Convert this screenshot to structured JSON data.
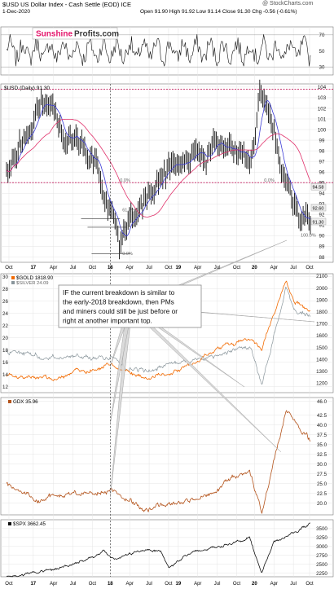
{
  "header": {
    "title": "$USD US Dollar Index - Cash Settle (EOD) ICE",
    "watermark": "@ StockCharts.com",
    "date": "1-Dec-2020",
    "quote": "Open 91.90  High 91.92  Low 91.14  Close 91.30  Chg -0.56 (-0.61%)"
  },
  "logo": {
    "part1": "Sunshine",
    "part2": "Profits.com",
    "color1": "#e4156b",
    "color2": "#3a3a3a"
  },
  "annotation": {
    "lines": [
      "IF the current breakdown is similar to",
      "the early-2018 breakdown, then PMs",
      "and miners could still be just before or",
      "right at another important top."
    ]
  },
  "colors": {
    "usd": "#111111",
    "ma_short": "#3b3bd6",
    "ma_long": "#e0306a",
    "gold": "#f26a00",
    "silver": "#8a969c",
    "gdx": "#b4541c",
    "spx": "#111111",
    "fib": "#c0185a"
  },
  "chart_data": [
    {
      "type": "line",
      "panel": "RSI",
      "y_ticks": [
        "70",
        "50",
        "30"
      ],
      "ylim": [
        20,
        80
      ],
      "series": []
    },
    {
      "type": "line",
      "panel": "USD",
      "legend": "$USD (Daily) 91.30",
      "x_ticks": [
        "Oct",
        "17",
        "Apr",
        "Jul",
        "Oct",
        "18",
        "Apr",
        "Jul",
        "Oct",
        "19",
        "Apr",
        "Jul",
        "Oct",
        "20",
        "Apr",
        "Jul",
        "Oct"
      ],
      "y_ticks": [
        "104",
        "103",
        "102",
        "101",
        "100",
        "99",
        "98",
        "97",
        "96",
        "95",
        "94",
        "93",
        "92",
        "91",
        "90",
        "89",
        "88"
      ],
      "ylim": [
        87.5,
        104.3
      ],
      "fib_labels": [
        "0.0%",
        "0.0%",
        "61.8%",
        "100.0%",
        "0.0%"
      ],
      "price_labels": [
        "94.58",
        "92.60",
        "91.30"
      ],
      "horizontal_levels": [
        103.8,
        95.0
      ],
      "anchors_x": [
        0,
        40,
        50,
        70,
        110,
        118,
        133,
        140,
        150,
        175,
        200,
        260,
        300,
        312,
        330,
        340,
        355,
        375
      ],
      "anchors_y": [
        96.5,
        101.5,
        102.5,
        100.5,
        97.0,
        94.0,
        92.0,
        89.0,
        91.0,
        94.5,
        96.5,
        98.0,
        97.0,
        103.5,
        99.5,
        96.5,
        93.0,
        91.3
      ]
    },
    {
      "type": "line",
      "panel": "GOLD_SILVER",
      "series_names": [
        "$GOLD 1818.90",
        "$SILVER 24.09"
      ],
      "left_ticks": [
        "30",
        "28",
        "26",
        "24",
        "22",
        "20",
        "18",
        "16",
        "14",
        "12"
      ],
      "right_ticks": [
        "2100",
        "2000",
        "1900",
        "1800",
        "1700",
        "1600",
        "1500",
        "1400",
        "1300",
        "1200"
      ],
      "ylim_gold": [
        1120,
        2120
      ],
      "anchors_x": [
        0,
        60,
        110,
        130,
        150,
        170,
        200,
        260,
        300,
        315,
        345,
        355,
        375
      ],
      "anchors_gold": [
        1260,
        1240,
        1330,
        1350,
        1280,
        1230,
        1290,
        1480,
        1580,
        1500,
        2050,
        1900,
        1800
      ],
      "anchors_silver": [
        17.8,
        16.8,
        17.0,
        16.6,
        15.2,
        14.6,
        15.8,
        17.3,
        18.5,
        12.0,
        28.5,
        24.5,
        23.5
      ]
    },
    {
      "type": "line",
      "panel": "GDX",
      "legend": "GDX 35.96",
      "y_ticks": [
        "46.0",
        "42.5",
        "40.0",
        "37.5",
        "35.0",
        "32.5",
        "30.0",
        "27.5",
        "25.0",
        "22.5",
        "20.0"
      ],
      "ylim": [
        17,
        47
      ],
      "anchors_x": [
        0,
        40,
        80,
        110,
        130,
        150,
        170,
        200,
        240,
        260,
        300,
        315,
        330,
        345,
        360,
        375
      ],
      "anchors_y": [
        25.0,
        21.0,
        22.5,
        23.0,
        23.0,
        21.5,
        18.5,
        19.5,
        21.5,
        23.5,
        28.5,
        17.0,
        31.0,
        44.0,
        40.0,
        36.0
      ]
    },
    {
      "type": "line",
      "panel": "SPX",
      "legend": "$SPX 3662.45",
      "y_ticks": [
        "3500",
        "3250",
        "3000",
        "2750",
        "2500",
        "2250"
      ],
      "ylim": [
        2150,
        3750
      ],
      "anchors_x": [
        0,
        60,
        110,
        120,
        130,
        170,
        190,
        200,
        220,
        260,
        300,
        315,
        330,
        360,
        375
      ],
      "anchors_y": [
        2150,
        2350,
        2750,
        2850,
        2620,
        2920,
        2900,
        2400,
        2750,
        3000,
        3250,
        2250,
        3100,
        3450,
        3640
      ]
    }
  ]
}
